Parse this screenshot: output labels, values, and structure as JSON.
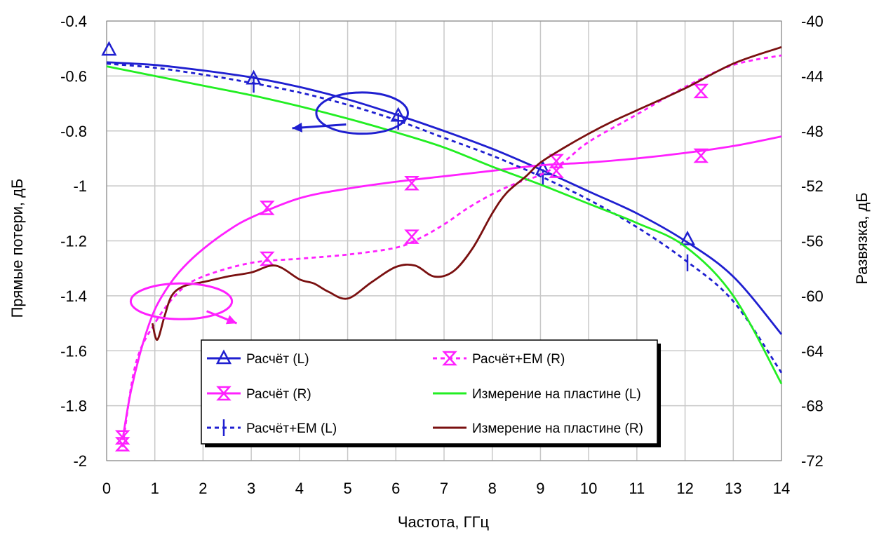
{
  "chart_data": {
    "type": "line",
    "title": "",
    "xlabel": "Частота, ГГц",
    "ylabel_left": "Прямые потери, дБ",
    "ylabel_right": "Развязка, дБ",
    "xlim": [
      0,
      14
    ],
    "ylim_left": [
      -2,
      -0.4
    ],
    "ylim_right": [
      -72,
      -40
    ],
    "x_ticks": [
      "0",
      "1",
      "2",
      "3",
      "4",
      "5",
      "6",
      "7",
      "8",
      "9",
      "10",
      "11",
      "12",
      "13",
      "14"
    ],
    "y_left_ticks": [
      "-0.4",
      "-0.6",
      "-0.8",
      "-1",
      "-1.2",
      "-1.4",
      "-1.6",
      "-1.8",
      "-2"
    ],
    "y_right_ticks": [
      "-40",
      "-44",
      "-48",
      "-52",
      "-56",
      "-60",
      "-64",
      "-68",
      "-72"
    ],
    "grid": true,
    "legend_position": "bottom-center",
    "series": [
      {
        "name": "Расчёт (L)",
        "axis": "left",
        "color": "#1f1fd0",
        "dash": "solid",
        "marker": "triangle",
        "x": [
          0,
          1,
          2,
          3,
          4,
          5,
          6,
          7,
          8,
          9,
          10,
          11,
          12,
          13,
          14
        ],
        "y": [
          -0.55,
          -0.56,
          -0.58,
          -0.605,
          -0.64,
          -0.685,
          -0.74,
          -0.8,
          -0.865,
          -0.94,
          -1.02,
          -1.1,
          -1.2,
          -1.33,
          -1.54
        ],
        "marker_x": [
          0.05,
          3.05,
          6.05,
          9.05,
          12.05
        ],
        "marker_y": [
          -0.505,
          -0.61,
          -0.745,
          -0.94,
          -1.195
        ]
      },
      {
        "name": "Расчёт (R)",
        "axis": "right",
        "color": "#ff20ff",
        "dash": "solid",
        "marker": "hourglass",
        "x": [
          0.33,
          0.5,
          0.75,
          1.0,
          1.3,
          1.6,
          2.0,
          2.5,
          3.0,
          4.0,
          5.0,
          6.0,
          7.0,
          8.0,
          9.0,
          10.0,
          11.0,
          12.0,
          13.0,
          14.0
        ],
        "y": [
          -70.5,
          -67.0,
          -63.5,
          -61.0,
          -59.2,
          -57.9,
          -56.6,
          -55.3,
          -54.3,
          -52.9,
          -52.2,
          -51.7,
          -51.3,
          -50.9,
          -50.5,
          -50.3,
          -50.0,
          -49.6,
          -49.1,
          -48.4
        ],
        "marker_x": [
          0.33,
          3.33,
          6.33,
          9.33,
          12.33
        ],
        "marker_y": [
          -70.3,
          -53.6,
          -51.8,
          -50.9,
          -49.8
        ]
      },
      {
        "name": "Расчёт+EM (L)",
        "axis": "left",
        "color": "#1f1fd0",
        "dash": "dotted",
        "marker": "tick",
        "x": [
          0,
          1,
          2,
          3,
          4,
          5,
          6,
          7,
          8,
          9,
          10,
          11,
          12,
          13,
          14
        ],
        "y": [
          -0.555,
          -0.57,
          -0.595,
          -0.625,
          -0.66,
          -0.705,
          -0.76,
          -0.825,
          -0.89,
          -0.965,
          -1.05,
          -1.15,
          -1.27,
          -1.42,
          -1.68
        ],
        "marker_x": [
          3.05,
          6.05,
          9.05,
          12.05
        ],
        "marker_y": [
          -0.63,
          -0.765,
          -0.97,
          -1.28
        ]
      },
      {
        "name": "Расчёт+EM (R)",
        "axis": "right",
        "color": "#ff20ff",
        "dash": "dotted",
        "marker": "hourglass",
        "x": [
          0.33,
          0.6,
          1.0,
          1.5,
          2.0,
          3.0,
          4.0,
          5.0,
          6.0,
          6.5,
          7.0,
          7.5,
          8.0,
          8.5,
          9.0,
          9.5,
          10.0,
          11.0,
          12.0,
          13.0,
          14.0
        ],
        "y": [
          -71.0,
          -65.0,
          -62.0,
          -59.7,
          -58.6,
          -57.6,
          -57.3,
          -57.0,
          -56.5,
          -55.8,
          -54.8,
          -53.6,
          -52.6,
          -51.8,
          -51.2,
          -50.2,
          -48.8,
          -46.8,
          -44.8,
          -43.2,
          -42.5
        ],
        "marker_x": [
          0.33,
          3.33,
          6.33,
          9.33,
          12.33
        ],
        "marker_y": [
          -70.8,
          -57.3,
          -55.7,
          -50.2,
          -45.1
        ]
      },
      {
        "name": "Измерение на пластине (L)",
        "axis": "left",
        "color": "#22ee22",
        "dash": "solid",
        "marker": "none",
        "x": [
          0,
          1,
          2,
          3,
          4,
          5,
          6,
          7,
          8,
          9,
          10,
          11,
          12,
          13,
          14
        ],
        "y": [
          -0.565,
          -0.6,
          -0.635,
          -0.67,
          -0.71,
          -0.755,
          -0.805,
          -0.86,
          -0.93,
          -0.995,
          -1.065,
          -1.135,
          -1.22,
          -1.4,
          -1.72
        ]
      },
      {
        "name": "Измерение на пластине (R)",
        "axis": "right",
        "color": "#7a1010",
        "dash": "solid",
        "marker": "none",
        "x": [
          0.95,
          1.05,
          1.2,
          1.35,
          1.6,
          2.0,
          2.5,
          3.0,
          3.5,
          4.0,
          4.3,
          4.6,
          5.0,
          5.5,
          6.0,
          6.4,
          6.8,
          7.2,
          7.6,
          8.0,
          8.3,
          8.7,
          9.0,
          9.5,
          10.0,
          10.5,
          11.0,
          12.0,
          13.0,
          14.0
        ],
        "y": [
          -62.0,
          -63.2,
          -61.5,
          -60.0,
          -59.3,
          -59.0,
          -58.6,
          -58.3,
          -57.8,
          -58.8,
          -59.1,
          -59.7,
          -60.2,
          -59.0,
          -57.9,
          -57.8,
          -58.6,
          -58.2,
          -56.5,
          -54.0,
          -52.5,
          -51.3,
          -50.3,
          -49.2,
          -48.2,
          -47.3,
          -46.5,
          -44.9,
          -43.1,
          -41.9
        ]
      }
    ],
    "annotations": [
      {
        "shape": "ellipse",
        "color": "#1f1fd0",
        "cx": 5.3,
        "cy": -0.735,
        "rx": 0.95,
        "ry": 0.075,
        "arrow_to": [
          3.85,
          -0.79
        ]
      },
      {
        "shape": "ellipse",
        "color": "#ff20ff",
        "cx": 1.55,
        "cy": -1.42,
        "rx": 1.05,
        "ry": 0.065,
        "arrow_to": [
          2.7,
          -1.5
        ]
      }
    ]
  }
}
